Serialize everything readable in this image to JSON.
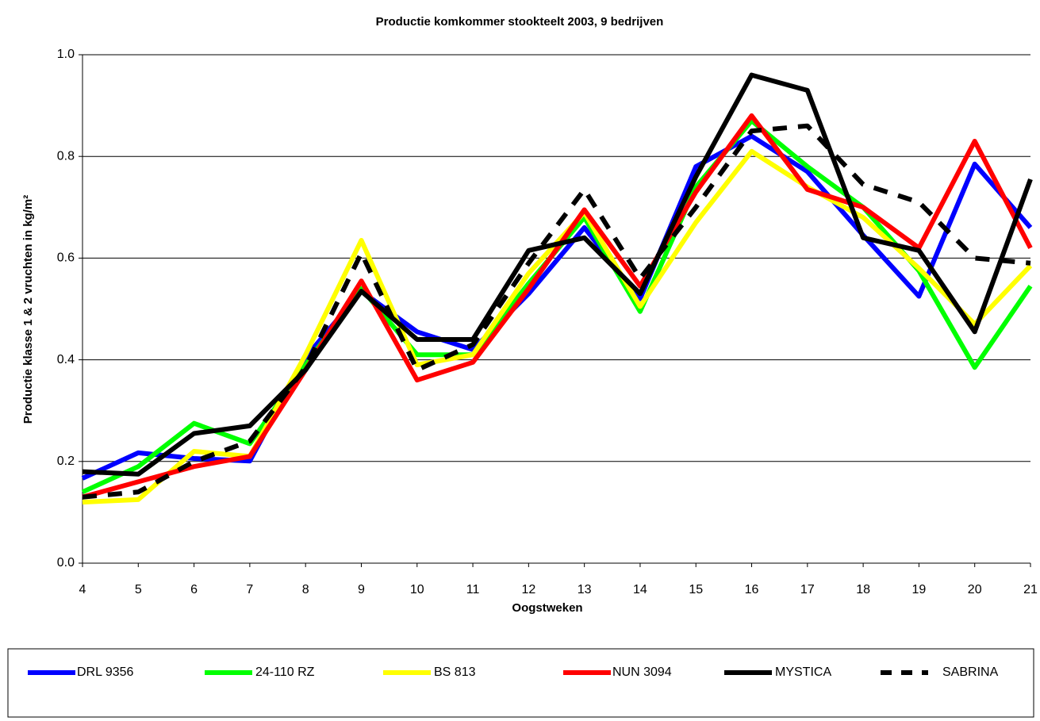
{
  "chart_data": {
    "type": "line",
    "title": "Productie komkommer stookteelt 2003, 9 bedrijven",
    "x_label": "Oogstweken",
    "y_label": "Productie klasse 1 & 2 vruchten in kg/m²",
    "x": [
      4,
      5,
      6,
      7,
      8,
      9,
      10,
      11,
      12,
      13,
      14,
      15,
      16,
      17,
      18,
      19,
      20,
      21
    ],
    "xlim": [
      4,
      21
    ],
    "xticks": [
      4,
      5,
      6,
      7,
      8,
      9,
      10,
      11,
      12,
      13,
      14,
      15,
      16,
      17,
      18,
      19,
      20,
      21
    ],
    "ylim": [
      0,
      1
    ],
    "yticks": [
      {
        "value": 0,
        "label": "0.0"
      },
      0.2,
      0.4,
      0.6,
      0.8,
      {
        "value": 1,
        "label": "1.0"
      }
    ],
    "grid": true,
    "legend": "bottom",
    "series": [
      {
        "name": "DRL 9356",
        "color": "#0000ff",
        "values": [
          0.167,
          0.217,
          0.206,
          0.201,
          0.405,
          0.535,
          0.455,
          0.42,
          0.53,
          0.66,
          0.52,
          0.78,
          0.84,
          0.77,
          0.645,
          0.525,
          0.785,
          0.66
        ]
      },
      {
        "name": "24-110 RZ",
        "color": "#00ff00",
        "values": [
          0.14,
          0.19,
          0.275,
          0.235,
          0.39,
          0.54,
          0.41,
          0.41,
          0.55,
          0.68,
          0.495,
          0.74,
          0.87,
          0.78,
          0.7,
          0.575,
          0.385,
          0.545
        ]
      },
      {
        "name": "BS 813",
        "color": "#ffff00",
        "values": [
          0.12,
          0.125,
          0.22,
          0.21,
          0.41,
          0.635,
          0.39,
          0.41,
          0.57,
          0.69,
          0.505,
          0.67,
          0.81,
          0.74,
          0.68,
          0.58,
          0.47,
          0.585
        ]
      },
      {
        "name": "NUN 3094",
        "color": "#ff0000",
        "values": [
          0.13,
          0.16,
          0.19,
          0.21,
          0.38,
          0.555,
          0.36,
          0.395,
          0.54,
          0.695,
          0.545,
          0.73,
          0.88,
          0.735,
          0.7,
          0.62,
          0.83,
          0.62
        ]
      },
      {
        "name": "MYSTICA",
        "color": "#000000",
        "values": [
          0.18,
          0.175,
          0.255,
          0.27,
          0.38,
          0.535,
          0.44,
          0.44,
          0.615,
          0.64,
          0.53,
          0.76,
          0.96,
          0.93,
          0.64,
          0.615,
          0.455,
          0.755
        ]
      },
      {
        "name": "SABRINA",
        "color": "#000000",
        "dashed": true,
        "values": [
          0.13,
          0.14,
          0.2,
          0.24,
          0.385,
          0.61,
          0.38,
          0.43,
          0.59,
          0.735,
          0.56,
          0.7,
          0.85,
          0.86,
          0.745,
          0.71,
          0.6,
          0.59
        ]
      }
    ]
  }
}
